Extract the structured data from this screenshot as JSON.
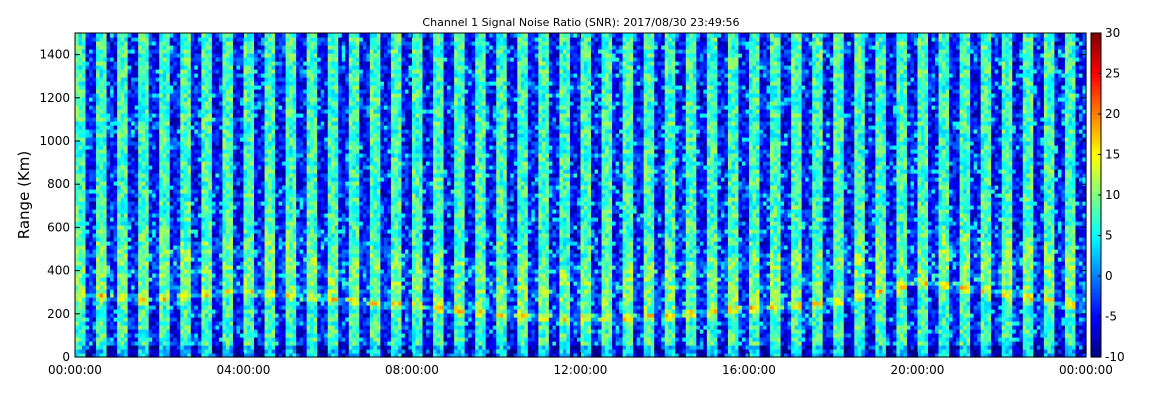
{
  "chart_data": {
    "type": "heatmap",
    "title": "Channel 1 Signal Noise Ratio (SNR): 2017/08/30 23:49:56",
    "xlabel": "",
    "ylabel": "Range (Km)",
    "x_range": [
      "00:00:00",
      "00:00:00 (+1 day)"
    ],
    "y_range": [
      0,
      1500
    ],
    "x_ticks": [
      "00:00:00",
      "04:00:00",
      "08:00:00",
      "12:00:00",
      "16:00:00",
      "20:00:00",
      "00:00:00"
    ],
    "y_ticks": [
      "0",
      "200",
      "400",
      "600",
      "800",
      "1000",
      "1200",
      "1400"
    ],
    "colorbar": {
      "colormap": "jet",
      "range": [
        -10,
        30
      ],
      "ticks": [
        "-10",
        "-5",
        "0",
        "5",
        "10",
        "15",
        "20",
        "25",
        "30"
      ]
    },
    "grid": false,
    "stripe_period_minutes": 30,
    "layer": {
      "description": "bright SNR layer",
      "height_km_by_hour": [
        [
          0,
          290
        ],
        [
          2,
          270
        ],
        [
          4,
          310
        ],
        [
          6,
          270
        ],
        [
          8,
          240
        ],
        [
          10,
          200
        ],
        [
          12,
          180
        ],
        [
          14,
          190
        ],
        [
          16,
          230
        ],
        [
          18,
          250
        ],
        [
          20,
          350
        ],
        [
          22,
          300
        ],
        [
          24,
          230
        ]
      ]
    }
  }
}
